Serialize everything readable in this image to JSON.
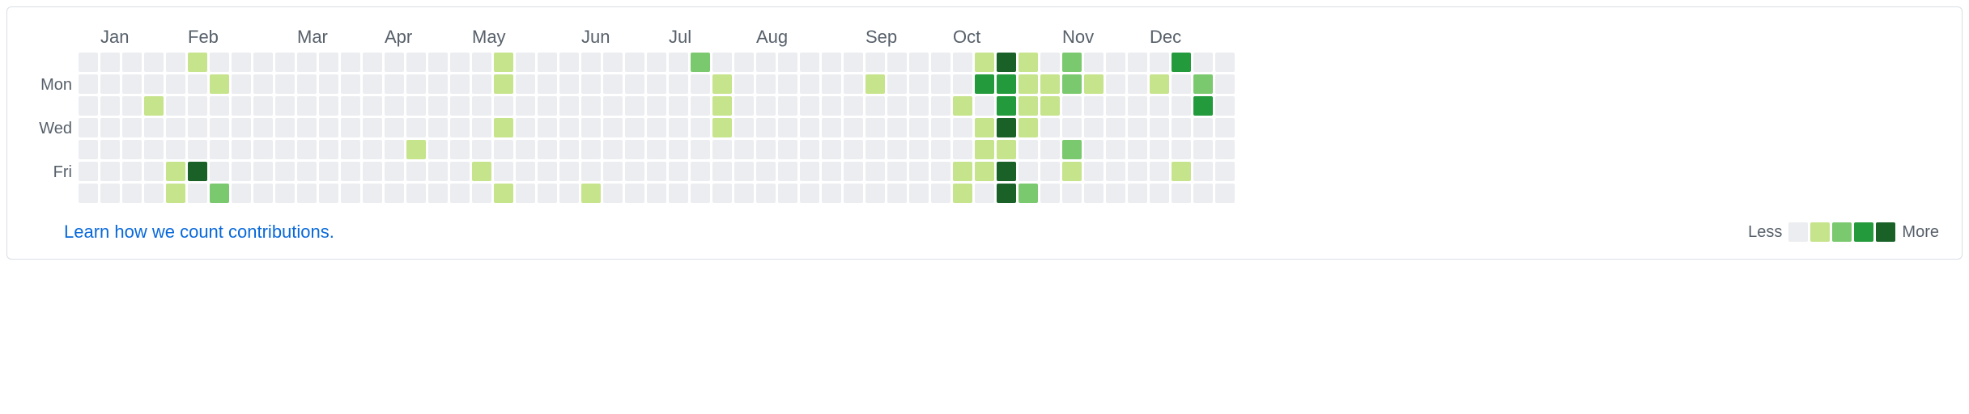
{
  "chart": {
    "type": "heatmap",
    "weeks": 53,
    "days": 7,
    "cell_size": 24,
    "cell_gap": 3,
    "colors": {
      "level0": "#ebedf0",
      "level1": "#c6e48b",
      "level2": "#7bc96f",
      "level3": "#239a3b",
      "level4": "#196127"
    },
    "day_labels": [
      "",
      "Mon",
      "",
      "Wed",
      "",
      "Fri",
      ""
    ],
    "day_label_color": "#57606a",
    "month_labels": [
      {
        "text": "Jan",
        "week": 1
      },
      {
        "text": "Feb",
        "week": 5
      },
      {
        "text": "Mar",
        "week": 10
      },
      {
        "text": "Apr",
        "week": 14
      },
      {
        "text": "May",
        "week": 18
      },
      {
        "text": "Jun",
        "week": 23
      },
      {
        "text": "Jul",
        "week": 27
      },
      {
        "text": "Aug",
        "week": 31
      },
      {
        "text": "Sep",
        "week": 36
      },
      {
        "text": "Oct",
        "week": 40
      },
      {
        "text": "Nov",
        "week": 45
      },
      {
        "text": "Dec",
        "week": 49
      }
    ],
    "month_label_color": "#57606a",
    "data": {
      "3": {
        "2": 1
      },
      "4": {
        "5": 1,
        "6": 1
      },
      "5": {
        "0": 1,
        "5": 4
      },
      "6": {
        "1": 1,
        "6": 2
      },
      "15": {
        "4": 1
      },
      "18": {
        "5": 1
      },
      "19": {
        "0": 1,
        "1": 1,
        "3": 1,
        "6": 1
      },
      "23": {
        "6": 1
      },
      "28": {
        "0": 2
      },
      "29": {
        "1": 1,
        "2": 1,
        "3": 1
      },
      "36": {
        "1": 1
      },
      "40": {
        "2": 1,
        "5": 1,
        "6": 1
      },
      "41": {
        "0": 1,
        "1": 3,
        "3": 1,
        "4": 1,
        "5": 1
      },
      "42": {
        "0": 4,
        "1": 3,
        "2": 3,
        "3": 4,
        "4": 1,
        "5": 4,
        "6": 4
      },
      "43": {
        "0": 1,
        "1": 1,
        "2": 1,
        "3": 1,
        "6": 2
      },
      "44": {
        "1": 1,
        "2": 1
      },
      "45": {
        "0": 2,
        "1": 2,
        "4": 2,
        "5": 1
      },
      "46": {
        "1": 1
      },
      "49": {
        "1": 1
      },
      "50": {
        "0": 3,
        "5": 1
      },
      "51": {
        "1": 2,
        "2": 3
      },
      "52": {}
    }
  },
  "footer": {
    "learn_link": "Learn how we count contributions.",
    "legend_less": "Less",
    "legend_more": "More"
  },
  "border_color": "#d8dee4",
  "background_color": "#ffffff"
}
